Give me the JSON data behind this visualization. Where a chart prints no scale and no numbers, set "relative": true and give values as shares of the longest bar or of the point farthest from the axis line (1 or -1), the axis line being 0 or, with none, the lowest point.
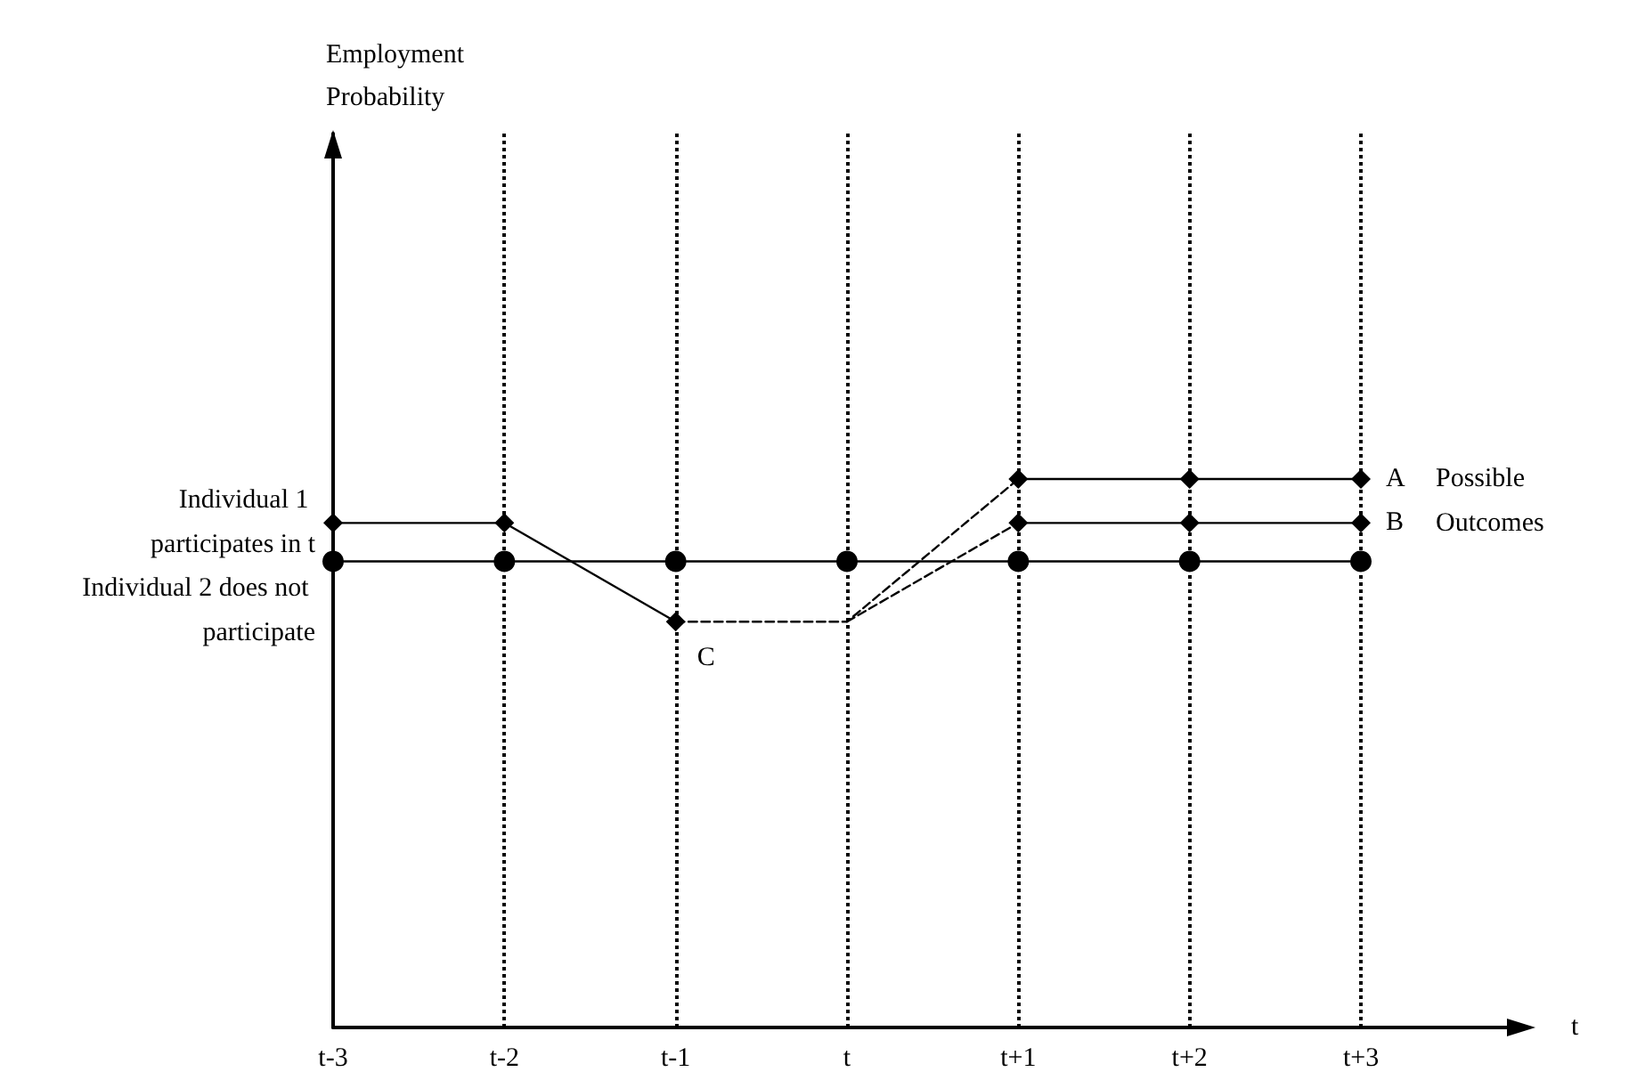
{
  "chart_data": {
    "type": "line",
    "relative": true,
    "categories": [
      "t-3",
      "t-2",
      "t-1",
      "t",
      "t+1",
      "t+2",
      "t+3"
    ],
    "grid": "x",
    "tick_labels": "x",
    "series": [
      {
        "color": "#000000",
        "marker": "diamond",
        "line_style": "solid",
        "values": [
          0.92,
          0.92,
          0.74,
          null,
          null,
          null,
          null
        ]
      },
      {
        "color": "#000000",
        "marker": "none",
        "line_style": "dashed",
        "values": [
          null,
          null,
          0.74,
          0.74,
          1,
          null,
          null
        ]
      },
      {
        "color": "#000000",
        "marker": "none",
        "line_style": "dashed",
        "values": [
          null,
          null,
          null,
          0.74,
          0.92,
          null,
          null
        ]
      },
      {
        "color": "#000000",
        "marker": "diamond",
        "line_style": "solid",
        "values": [
          null,
          null,
          null,
          null,
          1,
          1,
          1
        ]
      },
      {
        "color": "#000000",
        "marker": "diamond",
        "line_style": "solid",
        "values": [
          null,
          null,
          null,
          null,
          0.92,
          0.92,
          0.92
        ]
      },
      {
        "color": "#000000",
        "marker": "circle",
        "line_style": "solid",
        "values": [
          0.85,
          0.85,
          0.85,
          0.85,
          0.85,
          0.85,
          0.85
        ]
      }
    ],
    "annotations": [
      {
        "text": "Individual 1 participates in t",
        "x": "t-3",
        "y": 0.92
      },
      {
        "text": "Individual 2 does not participate",
        "x": "t-3",
        "y": 0.85
      },
      {
        "text": "A",
        "x": "t+3",
        "y": 1
      },
      {
        "text": "B",
        "x": "t+3",
        "y": 0.92
      },
      {
        "text": "C",
        "x": "t-1",
        "y": 0.74
      },
      "Possible Outcomes",
      "Employment Probability",
      "t"
    ]
  }
}
